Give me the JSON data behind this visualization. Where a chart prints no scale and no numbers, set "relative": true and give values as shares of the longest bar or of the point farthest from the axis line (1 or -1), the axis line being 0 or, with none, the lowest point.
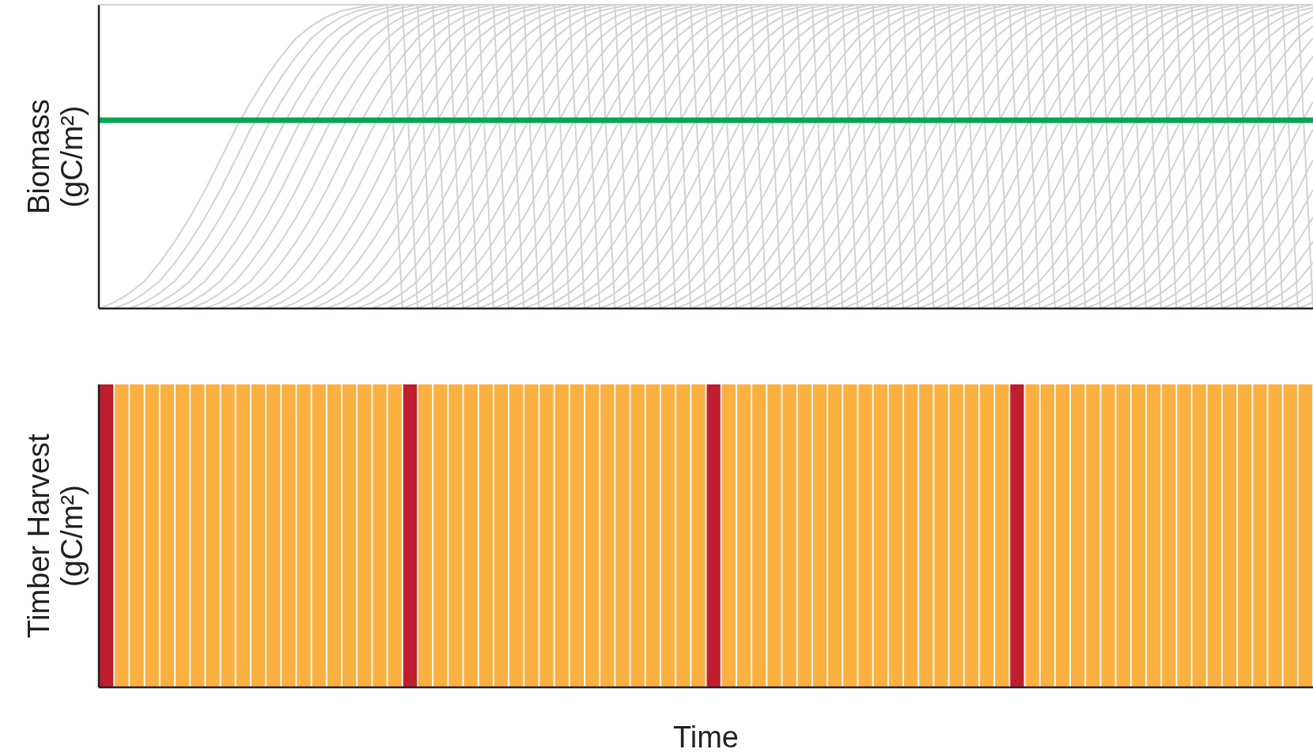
{
  "chart_data": [
    {
      "type": "line",
      "relative": true,
      "ylabel": "Biomass (gC/m²)",
      "categories": [
        null,
        null,
        null,
        null,
        null,
        null,
        null,
        null,
        null,
        null,
        null,
        null,
        null,
        null,
        null,
        null,
        null,
        null,
        null,
        null,
        null,
        null,
        null,
        null,
        null,
        null,
        null,
        null,
        null,
        null,
        null,
        null,
        null,
        null,
        null,
        null,
        null,
        null,
        null,
        null,
        null,
        null,
        null,
        null,
        null,
        null,
        null,
        null,
        null,
        null,
        null,
        null,
        null,
        null,
        null,
        null,
        null,
        null,
        null,
        null,
        null,
        null,
        null,
        null,
        null,
        null,
        null,
        null,
        null,
        null,
        null,
        null,
        null,
        null,
        null,
        null,
        null,
        null,
        null,
        null,
        null
      ],
      "ref_lines": [
        {
          "axis": "y",
          "value": 0.62,
          "color": "#00a651"
        }
      ],
      "series": [
        {
          "color": "#d1d3d4",
          "values": [
            0,
            0.02,
            0.05,
            0.09,
            0.15,
            0.22,
            0.3,
            0.39,
            0.49,
            0.59,
            0.68,
            0.76,
            0.83,
            0.89,
            0.93,
            0.96,
            0.98,
            0.99,
            1,
            1,
            0,
            0.02,
            0.05,
            0.09,
            0.15,
            0.22,
            0.3,
            0.39,
            0.49,
            0.59,
            0.68,
            0.76,
            0.83,
            0.89,
            0.93,
            0.96,
            0.98,
            0.99,
            1,
            1,
            0,
            0.02,
            0.05,
            0.09,
            0.15,
            0.22,
            0.3,
            0.39,
            0.49,
            0.59,
            0.68,
            0.76,
            0.83,
            0.89,
            0.93,
            0.96,
            0.98,
            0.99,
            1,
            1,
            0,
            0.02,
            0.05,
            0.09,
            0.15,
            0.22,
            0.3,
            0.39,
            0.49,
            0.59,
            0.68,
            0.76,
            0.83,
            0.89,
            0.93,
            0.96,
            0.98,
            0.99,
            1,
            1,
            0
          ]
        },
        {
          "color": "#d1d3d4",
          "values": [
            0,
            0,
            0.02,
            0.05,
            0.09,
            0.15,
            0.22,
            0.3,
            0.39,
            0.49,
            0.59,
            0.68,
            0.76,
            0.83,
            0.89,
            0.93,
            0.96,
            0.98,
            0.99,
            1,
            1,
            0,
            0.02,
            0.05,
            0.09,
            0.15,
            0.22,
            0.3,
            0.39,
            0.49,
            0.59,
            0.68,
            0.76,
            0.83,
            0.89,
            0.93,
            0.96,
            0.98,
            0.99,
            1,
            1,
            0,
            0.02,
            0.05,
            0.09,
            0.15,
            0.22,
            0.3,
            0.39,
            0.49,
            0.59,
            0.68,
            0.76,
            0.83,
            0.89,
            0.93,
            0.96,
            0.98,
            0.99,
            1,
            1,
            0,
            0.02,
            0.05,
            0.09,
            0.15,
            0.22,
            0.3,
            0.39,
            0.49,
            0.59,
            0.68,
            0.76,
            0.83,
            0.89,
            0.93,
            0.96,
            0.98,
            0.99,
            1,
            1
          ]
        },
        {
          "color": "#d1d3d4",
          "values": [
            0,
            0,
            0,
            0.02,
            0.05,
            0.09,
            0.15,
            0.22,
            0.3,
            0.39,
            0.49,
            0.59,
            0.68,
            0.76,
            0.83,
            0.89,
            0.93,
            0.96,
            0.98,
            0.99,
            1,
            1,
            0,
            0.02,
            0.05,
            0.09,
            0.15,
            0.22,
            0.3,
            0.39,
            0.49,
            0.59,
            0.68,
            0.76,
            0.83,
            0.89,
            0.93,
            0.96,
            0.98,
            0.99,
            1,
            1,
            0,
            0.02,
            0.05,
            0.09,
            0.15,
            0.22,
            0.3,
            0.39,
            0.49,
            0.59,
            0.68,
            0.76,
            0.83,
            0.89,
            0.93,
            0.96,
            0.98,
            0.99,
            1,
            1,
            0,
            0.02,
            0.05,
            0.09,
            0.15,
            0.22,
            0.3,
            0.39,
            0.49,
            0.59,
            0.68,
            0.76,
            0.83,
            0.89,
            0.93,
            0.96,
            0.98,
            0.99,
            1
          ]
        },
        {
          "color": "#d1d3d4",
          "values": [
            0,
            0,
            0,
            0,
            0.02,
            0.05,
            0.09,
            0.15,
            0.22,
            0.3,
            0.39,
            0.49,
            0.59,
            0.68,
            0.76,
            0.83,
            0.89,
            0.93,
            0.96,
            0.98,
            0.99,
            1,
            1,
            0,
            0.02,
            0.05,
            0.09,
            0.15,
            0.22,
            0.3,
            0.39,
            0.49,
            0.59,
            0.68,
            0.76,
            0.83,
            0.89,
            0.93,
            0.96,
            0.98,
            0.99,
            1,
            1,
            0,
            0.02,
            0.05,
            0.09,
            0.15,
            0.22,
            0.3,
            0.39,
            0.49,
            0.59,
            0.68,
            0.76,
            0.83,
            0.89,
            0.93,
            0.96,
            0.98,
            0.99,
            1,
            1,
            0,
            0.02,
            0.05,
            0.09,
            0.15,
            0.22,
            0.3,
            0.39,
            0.49,
            0.59,
            0.68,
            0.76,
            0.83,
            0.89,
            0.93,
            0.96,
            0.98,
            0.99
          ]
        },
        {
          "color": "#d1d3d4",
          "values": [
            0,
            0,
            0,
            0,
            0,
            0.02,
            0.05,
            0.09,
            0.15,
            0.22,
            0.3,
            0.39,
            0.49,
            0.59,
            0.68,
            0.76,
            0.83,
            0.89,
            0.93,
            0.96,
            0.98,
            0.99,
            1,
            1,
            0,
            0.02,
            0.05,
            0.09,
            0.15,
            0.22,
            0.3,
            0.39,
            0.49,
            0.59,
            0.68,
            0.76,
            0.83,
            0.89,
            0.93,
            0.96,
            0.98,
            0.99,
            1,
            1,
            0,
            0.02,
            0.05,
            0.09,
            0.15,
            0.22,
            0.3,
            0.39,
            0.49,
            0.59,
            0.68,
            0.76,
            0.83,
            0.89,
            0.93,
            0.96,
            0.98,
            0.99,
            1,
            1,
            0,
            0.02,
            0.05,
            0.09,
            0.15,
            0.22,
            0.3,
            0.39,
            0.49,
            0.59,
            0.68,
            0.76,
            0.83,
            0.89,
            0.93,
            0.96,
            0.98
          ]
        },
        {
          "color": "#d1d3d4",
          "values": [
            0,
            0,
            0,
            0,
            0,
            0,
            0.02,
            0.05,
            0.09,
            0.15,
            0.22,
            0.3,
            0.39,
            0.49,
            0.59,
            0.68,
            0.76,
            0.83,
            0.89,
            0.93,
            0.96,
            0.98,
            0.99,
            1,
            1,
            0,
            0.02,
            0.05,
            0.09,
            0.15,
            0.22,
            0.3,
            0.39,
            0.49,
            0.59,
            0.68,
            0.76,
            0.83,
            0.89,
            0.93,
            0.96,
            0.98,
            0.99,
            1,
            1,
            0,
            0.02,
            0.05,
            0.09,
            0.15,
            0.22,
            0.3,
            0.39,
            0.49,
            0.59,
            0.68,
            0.76,
            0.83,
            0.89,
            0.93,
            0.96,
            0.98,
            0.99,
            1,
            1,
            0,
            0.02,
            0.05,
            0.09,
            0.15,
            0.22,
            0.3,
            0.39,
            0.49,
            0.59,
            0.68,
            0.76,
            0.83,
            0.89,
            0.93,
            0.96
          ]
        },
        {
          "color": "#d1d3d4",
          "values": [
            0,
            0,
            0,
            0,
            0,
            0,
            0,
            0.02,
            0.05,
            0.09,
            0.15,
            0.22,
            0.3,
            0.39,
            0.49,
            0.59,
            0.68,
            0.76,
            0.83,
            0.89,
            0.93,
            0.96,
            0.98,
            0.99,
            1,
            1,
            0,
            0.02,
            0.05,
            0.09,
            0.15,
            0.22,
            0.3,
            0.39,
            0.49,
            0.59,
            0.68,
            0.76,
            0.83,
            0.89,
            0.93,
            0.96,
            0.98,
            0.99,
            1,
            1,
            0,
            0.02,
            0.05,
            0.09,
            0.15,
            0.22,
            0.3,
            0.39,
            0.49,
            0.59,
            0.68,
            0.76,
            0.83,
            0.89,
            0.93,
            0.96,
            0.98,
            0.99,
            1,
            1,
            0,
            0.02,
            0.05,
            0.09,
            0.15,
            0.22,
            0.3,
            0.39,
            0.49,
            0.59,
            0.68,
            0.76,
            0.83,
            0.89,
            0.93
          ]
        },
        {
          "color": "#d1d3d4",
          "values": [
            0,
            0,
            0,
            0,
            0,
            0,
            0,
            0,
            0.02,
            0.05,
            0.09,
            0.15,
            0.22,
            0.3,
            0.39,
            0.49,
            0.59,
            0.68,
            0.76,
            0.83,
            0.89,
            0.93,
            0.96,
            0.98,
            0.99,
            1,
            1,
            0,
            0.02,
            0.05,
            0.09,
            0.15,
            0.22,
            0.3,
            0.39,
            0.49,
            0.59,
            0.68,
            0.76,
            0.83,
            0.89,
            0.93,
            0.96,
            0.98,
            0.99,
            1,
            1,
            0,
            0.02,
            0.05,
            0.09,
            0.15,
            0.22,
            0.3,
            0.39,
            0.49,
            0.59,
            0.68,
            0.76,
            0.83,
            0.89,
            0.93,
            0.96,
            0.98,
            0.99,
            1,
            1,
            0,
            0.02,
            0.05,
            0.09,
            0.15,
            0.22,
            0.3,
            0.39,
            0.49,
            0.59,
            0.68,
            0.76,
            0.83,
            0.89
          ]
        },
        {
          "color": "#d1d3d4",
          "values": [
            0,
            0,
            0,
            0,
            0,
            0,
            0,
            0,
            0,
            0.02,
            0.05,
            0.09,
            0.15,
            0.22,
            0.3,
            0.39,
            0.49,
            0.59,
            0.68,
            0.76,
            0.83,
            0.89,
            0.93,
            0.96,
            0.98,
            0.99,
            1,
            1,
            0,
            0.02,
            0.05,
            0.09,
            0.15,
            0.22,
            0.3,
            0.39,
            0.49,
            0.59,
            0.68,
            0.76,
            0.83,
            0.89,
            0.93,
            0.96,
            0.98,
            0.99,
            1,
            1,
            0,
            0.02,
            0.05,
            0.09,
            0.15,
            0.22,
            0.3,
            0.39,
            0.49,
            0.59,
            0.68,
            0.76,
            0.83,
            0.89,
            0.93,
            0.96,
            0.98,
            0.99,
            1,
            1,
            0,
            0.02,
            0.05,
            0.09,
            0.15,
            0.22,
            0.3,
            0.39,
            0.49,
            0.59,
            0.68,
            0.76,
            0.83
          ]
        },
        {
          "color": "#d1d3d4",
          "values": [
            0,
            0,
            0,
            0,
            0,
            0,
            0,
            0,
            0,
            0,
            0.02,
            0.05,
            0.09,
            0.15,
            0.22,
            0.3,
            0.39,
            0.49,
            0.59,
            0.68,
            0.76,
            0.83,
            0.89,
            0.93,
            0.96,
            0.98,
            0.99,
            1,
            1,
            0,
            0.02,
            0.05,
            0.09,
            0.15,
            0.22,
            0.3,
            0.39,
            0.49,
            0.59,
            0.68,
            0.76,
            0.83,
            0.89,
            0.93,
            0.96,
            0.98,
            0.99,
            1,
            1,
            0,
            0.02,
            0.05,
            0.09,
            0.15,
            0.22,
            0.3,
            0.39,
            0.49,
            0.59,
            0.68,
            0.76,
            0.83,
            0.89,
            0.93,
            0.96,
            0.98,
            0.99,
            1,
            1,
            0,
            0.02,
            0.05,
            0.09,
            0.15,
            0.22,
            0.3,
            0.39,
            0.49,
            0.59,
            0.68,
            0.76
          ]
        },
        {
          "color": "#d1d3d4",
          "values": [
            0,
            0,
            0,
            0,
            0,
            0,
            0,
            0,
            0,
            0,
            0,
            0.02,
            0.05,
            0.09,
            0.15,
            0.22,
            0.3,
            0.39,
            0.49,
            0.59,
            0.68,
            0.76,
            0.83,
            0.89,
            0.93,
            0.96,
            0.98,
            0.99,
            1,
            1,
            0,
            0.02,
            0.05,
            0.09,
            0.15,
            0.22,
            0.3,
            0.39,
            0.49,
            0.59,
            0.68,
            0.76,
            0.83,
            0.89,
            0.93,
            0.96,
            0.98,
            0.99,
            1,
            1,
            0,
            0.02,
            0.05,
            0.09,
            0.15,
            0.22,
            0.3,
            0.39,
            0.49,
            0.59,
            0.68,
            0.76,
            0.83,
            0.89,
            0.93,
            0.96,
            0.98,
            0.99,
            1,
            1,
            0,
            0.02,
            0.05,
            0.09,
            0.15,
            0.22,
            0.3,
            0.39,
            0.49,
            0.59,
            0.68
          ]
        },
        {
          "color": "#d1d3d4",
          "values": [
            0,
            0,
            0,
            0,
            0,
            0,
            0,
            0,
            0,
            0,
            0,
            0,
            0.02,
            0.05,
            0.09,
            0.15,
            0.22,
            0.3,
            0.39,
            0.49,
            0.59,
            0.68,
            0.76,
            0.83,
            0.89,
            0.93,
            0.96,
            0.98,
            0.99,
            1,
            1,
            0,
            0.02,
            0.05,
            0.09,
            0.15,
            0.22,
            0.3,
            0.39,
            0.49,
            0.59,
            0.68,
            0.76,
            0.83,
            0.89,
            0.93,
            0.96,
            0.98,
            0.99,
            1,
            1,
            0,
            0.02,
            0.05,
            0.09,
            0.15,
            0.22,
            0.3,
            0.39,
            0.49,
            0.59,
            0.68,
            0.76,
            0.83,
            0.89,
            0.93,
            0.96,
            0.98,
            0.99,
            1,
            1,
            0,
            0.02,
            0.05,
            0.09,
            0.15,
            0.22,
            0.3,
            0.39,
            0.49,
            0.59
          ]
        },
        {
          "color": "#d1d3d4",
          "values": [
            0,
            0,
            0,
            0,
            0,
            0,
            0,
            0,
            0,
            0,
            0,
            0,
            0,
            0.02,
            0.05,
            0.09,
            0.15,
            0.22,
            0.3,
            0.39,
            0.49,
            0.59,
            0.68,
            0.76,
            0.83,
            0.89,
            0.93,
            0.96,
            0.98,
            0.99,
            1,
            1,
            0,
            0.02,
            0.05,
            0.09,
            0.15,
            0.22,
            0.3,
            0.39,
            0.49,
            0.59,
            0.68,
            0.76,
            0.83,
            0.89,
            0.93,
            0.96,
            0.98,
            0.99,
            1,
            1,
            0,
            0.02,
            0.05,
            0.09,
            0.15,
            0.22,
            0.3,
            0.39,
            0.49,
            0.59,
            0.68,
            0.76,
            0.83,
            0.89,
            0.93,
            0.96,
            0.98,
            0.99,
            1,
            1,
            0,
            0.02,
            0.05,
            0.09,
            0.15,
            0.22,
            0.3,
            0.39,
            0.49
          ]
        },
        {
          "color": "#d1d3d4",
          "values": [
            0,
            0,
            0,
            0,
            0,
            0,
            0,
            0,
            0,
            0,
            0,
            0,
            0,
            0,
            0.02,
            0.05,
            0.09,
            0.15,
            0.22,
            0.3,
            0.39,
            0.49,
            0.59,
            0.68,
            0.76,
            0.83,
            0.89,
            0.93,
            0.96,
            0.98,
            0.99,
            1,
            1,
            0,
            0.02,
            0.05,
            0.09,
            0.15,
            0.22,
            0.3,
            0.39,
            0.49,
            0.59,
            0.68,
            0.76,
            0.83,
            0.89,
            0.93,
            0.96,
            0.98,
            0.99,
            1,
            1,
            0,
            0.02,
            0.05,
            0.09,
            0.15,
            0.22,
            0.3,
            0.39,
            0.49,
            0.59,
            0.68,
            0.76,
            0.83,
            0.89,
            0.93,
            0.96,
            0.98,
            0.99,
            1,
            1,
            0,
            0.02,
            0.05,
            0.09,
            0.15,
            0.22,
            0.3,
            0.39
          ]
        },
        {
          "color": "#d1d3d4",
          "values": [
            0,
            0,
            0,
            0,
            0,
            0,
            0,
            0,
            0,
            0,
            0,
            0,
            0,
            0,
            0,
            0.02,
            0.05,
            0.09,
            0.15,
            0.22,
            0.3,
            0.39,
            0.49,
            0.59,
            0.68,
            0.76,
            0.83,
            0.89,
            0.93,
            0.96,
            0.98,
            0.99,
            1,
            1,
            0,
            0.02,
            0.05,
            0.09,
            0.15,
            0.22,
            0.3,
            0.39,
            0.49,
            0.59,
            0.68,
            0.76,
            0.83,
            0.89,
            0.93,
            0.96,
            0.98,
            0.99,
            1,
            1,
            0,
            0.02,
            0.05,
            0.09,
            0.15,
            0.22,
            0.3,
            0.39,
            0.49,
            0.59,
            0.68,
            0.76,
            0.83,
            0.89,
            0.93,
            0.96,
            0.98,
            0.99,
            1,
            1,
            0,
            0.02,
            0.05,
            0.09,
            0.15,
            0.22,
            0.3
          ]
        },
        {
          "color": "#d1d3d4",
          "values": [
            0,
            0,
            0,
            0,
            0,
            0,
            0,
            0,
            0,
            0,
            0,
            0,
            0,
            0,
            0,
            0,
            0.02,
            0.05,
            0.09,
            0.15,
            0.22,
            0.3,
            0.39,
            0.49,
            0.59,
            0.68,
            0.76,
            0.83,
            0.89,
            0.93,
            0.96,
            0.98,
            0.99,
            1,
            1,
            0,
            0.02,
            0.05,
            0.09,
            0.15,
            0.22,
            0.3,
            0.39,
            0.49,
            0.59,
            0.68,
            0.76,
            0.83,
            0.89,
            0.93,
            0.96,
            0.98,
            0.99,
            1,
            1,
            0,
            0.02,
            0.05,
            0.09,
            0.15,
            0.22,
            0.3,
            0.39,
            0.49,
            0.59,
            0.68,
            0.76,
            0.83,
            0.89,
            0.93,
            0.96,
            0.98,
            0.99,
            1,
            1,
            0,
            0.02,
            0.05,
            0.09,
            0.15,
            0.22
          ]
        },
        {
          "color": "#d1d3d4",
          "values": [
            0,
            0,
            0,
            0,
            0,
            0,
            0,
            0,
            0,
            0,
            0,
            0,
            0,
            0,
            0,
            0,
            0,
            0.02,
            0.05,
            0.09,
            0.15,
            0.22,
            0.3,
            0.39,
            0.49,
            0.59,
            0.68,
            0.76,
            0.83,
            0.89,
            0.93,
            0.96,
            0.98,
            0.99,
            1,
            1,
            0,
            0.02,
            0.05,
            0.09,
            0.15,
            0.22,
            0.3,
            0.39,
            0.49,
            0.59,
            0.68,
            0.76,
            0.83,
            0.89,
            0.93,
            0.96,
            0.98,
            0.99,
            1,
            1,
            0,
            0.02,
            0.05,
            0.09,
            0.15,
            0.22,
            0.3,
            0.39,
            0.49,
            0.59,
            0.68,
            0.76,
            0.83,
            0.89,
            0.93,
            0.96,
            0.98,
            0.99,
            1,
            1,
            0,
            0.02,
            0.05,
            0.09,
            0.15
          ]
        },
        {
          "color": "#d1d3d4",
          "values": [
            0,
            0,
            0,
            0,
            0,
            0,
            0,
            0,
            0,
            0,
            0,
            0,
            0,
            0,
            0,
            0,
            0,
            0,
            0.02,
            0.05,
            0.09,
            0.15,
            0.22,
            0.3,
            0.39,
            0.49,
            0.59,
            0.68,
            0.76,
            0.83,
            0.89,
            0.93,
            0.96,
            0.98,
            0.99,
            1,
            1,
            0,
            0.02,
            0.05,
            0.09,
            0.15,
            0.22,
            0.3,
            0.39,
            0.49,
            0.59,
            0.68,
            0.76,
            0.83,
            0.89,
            0.93,
            0.96,
            0.98,
            0.99,
            1,
            1,
            0,
            0.02,
            0.05,
            0.09,
            0.15,
            0.22,
            0.3,
            0.39,
            0.49,
            0.59,
            0.68,
            0.76,
            0.83,
            0.89,
            0.93,
            0.96,
            0.98,
            0.99,
            1,
            1,
            0,
            0.02,
            0.05,
            0.09
          ]
        },
        {
          "color": "#d1d3d4",
          "values": [
            0,
            0,
            0,
            0,
            0,
            0,
            0,
            0,
            0,
            0,
            0,
            0,
            0,
            0,
            0,
            0,
            0,
            0,
            0,
            0.02,
            0.05,
            0.09,
            0.15,
            0.22,
            0.3,
            0.39,
            0.49,
            0.59,
            0.68,
            0.76,
            0.83,
            0.89,
            0.93,
            0.96,
            0.98,
            0.99,
            1,
            1,
            0,
            0.02,
            0.05,
            0.09,
            0.15,
            0.22,
            0.3,
            0.39,
            0.49,
            0.59,
            0.68,
            0.76,
            0.83,
            0.89,
            0.93,
            0.96,
            0.98,
            0.99,
            1,
            1,
            0,
            0.02,
            0.05,
            0.09,
            0.15,
            0.22,
            0.3,
            0.39,
            0.49,
            0.59,
            0.68,
            0.76,
            0.83,
            0.89,
            0.93,
            0.96,
            0.98,
            0.99,
            1,
            1,
            0,
            0.02,
            0.05
          ]
        },
        {
          "color": "#d1d3d4",
          "values": [
            0,
            0,
            0,
            0,
            0,
            0,
            0,
            0,
            0,
            0,
            0,
            0,
            0,
            0,
            0,
            0,
            0,
            0,
            0,
            0,
            0.02,
            0.05,
            0.09,
            0.15,
            0.22,
            0.3,
            0.39,
            0.49,
            0.59,
            0.68,
            0.76,
            0.83,
            0.89,
            0.93,
            0.96,
            0.98,
            0.99,
            1,
            1,
            0,
            0.02,
            0.05,
            0.09,
            0.15,
            0.22,
            0.3,
            0.39,
            0.49,
            0.59,
            0.68,
            0.76,
            0.83,
            0.89,
            0.93,
            0.96,
            0.98,
            0.99,
            1,
            1,
            0,
            0.02,
            0.05,
            0.09,
            0.15,
            0.22,
            0.3,
            0.39,
            0.49,
            0.59,
            0.68,
            0.76,
            0.83,
            0.89,
            0.93,
            0.96,
            0.98,
            0.99,
            1,
            1,
            0,
            0.02
          ]
        }
      ]
    },
    {
      "type": "bar",
      "relative": true,
      "ylabel": "Timber Harvest (gC/m²)",
      "xlabel": "Time",
      "categories": [
        null,
        null,
        null,
        null,
        null,
        null,
        null,
        null,
        null,
        null,
        null,
        null,
        null,
        null,
        null,
        null,
        null,
        null,
        null,
        null,
        null,
        null,
        null,
        null,
        null,
        null,
        null,
        null,
        null,
        null,
        null,
        null,
        null,
        null,
        null,
        null,
        null,
        null,
        null,
        null,
        null,
        null,
        null,
        null,
        null,
        null,
        null,
        null,
        null,
        null,
        null,
        null,
        null,
        null,
        null,
        null,
        null,
        null,
        null,
        null,
        null,
        null,
        null,
        null,
        null,
        null,
        null,
        null,
        null,
        null,
        null,
        null,
        null,
        null,
        null,
        null,
        null,
        null,
        null,
        null
      ],
      "values": [
        1,
        1,
        1,
        1,
        1,
        1,
        1,
        1,
        1,
        1,
        1,
        1,
        1,
        1,
        1,
        1,
        1,
        1,
        1,
        1,
        1,
        1,
        1,
        1,
        1,
        1,
        1,
        1,
        1,
        1,
        1,
        1,
        1,
        1,
        1,
        1,
        1,
        1,
        1,
        1,
        1,
        1,
        1,
        1,
        1,
        1,
        1,
        1,
        1,
        1,
        1,
        1,
        1,
        1,
        1,
        1,
        1,
        1,
        1,
        1,
        1,
        1,
        1,
        1,
        1,
        1,
        1,
        1,
        1,
        1,
        1,
        1,
        1,
        1,
        1,
        1,
        1,
        1,
        1,
        1
      ],
      "colors": [
        "#be1e2d",
        "#fbb040",
        "#fbb040",
        "#fbb040",
        "#fbb040",
        "#fbb040",
        "#fbb040",
        "#fbb040",
        "#fbb040",
        "#fbb040",
        "#fbb040",
        "#fbb040",
        "#fbb040",
        "#fbb040",
        "#fbb040",
        "#fbb040",
        "#fbb040",
        "#fbb040",
        "#fbb040",
        "#fbb040",
        "#be1e2d",
        "#fbb040",
        "#fbb040",
        "#fbb040",
        "#fbb040",
        "#fbb040",
        "#fbb040",
        "#fbb040",
        "#fbb040",
        "#fbb040",
        "#fbb040",
        "#fbb040",
        "#fbb040",
        "#fbb040",
        "#fbb040",
        "#fbb040",
        "#fbb040",
        "#fbb040",
        "#fbb040",
        "#fbb040",
        "#be1e2d",
        "#fbb040",
        "#fbb040",
        "#fbb040",
        "#fbb040",
        "#fbb040",
        "#fbb040",
        "#fbb040",
        "#fbb040",
        "#fbb040",
        "#fbb040",
        "#fbb040",
        "#fbb040",
        "#fbb040",
        "#fbb040",
        "#fbb040",
        "#fbb040",
        "#fbb040",
        "#fbb040",
        "#fbb040",
        "#be1e2d",
        "#fbb040",
        "#fbb040",
        "#fbb040",
        "#fbb040",
        "#fbb040",
        "#fbb040",
        "#fbb040",
        "#fbb040",
        "#fbb040",
        "#fbb040",
        "#fbb040",
        "#fbb040",
        "#fbb040",
        "#fbb040",
        "#fbb040",
        "#fbb040",
        "#fbb040",
        "#fbb040",
        "#fbb040"
      ]
    }
  ]
}
